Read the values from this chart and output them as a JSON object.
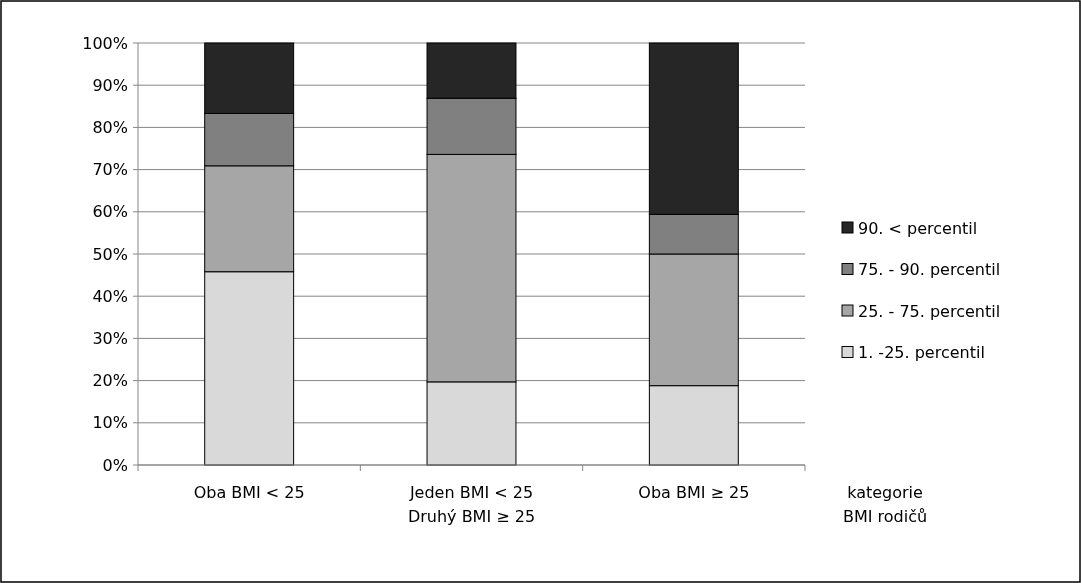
{
  "chart_data": {
    "type": "bar",
    "stacked": true,
    "xlabel": "kategorie\nBMI rodičů",
    "categories": [
      "Oba BMI < 25",
      "Jeden BMI < 25\nDruhý BMI ≥ 25",
      "Oba BMI ≥ 25"
    ],
    "series": [
      {
        "name": "1. -25. percentil",
        "color": "#d9d9d9",
        "values": [
          45.8,
          19.7,
          18.8
        ]
      },
      {
        "name": "25. - 75. percentil",
        "color": "#a6a6a6",
        "values": [
          25.1,
          53.9,
          31.2
        ]
      },
      {
        "name": "75. - 90. percentil",
        "color": "#808080",
        "values": [
          12.4,
          13.3,
          9.4
        ]
      },
      {
        "name": "90. < percentil",
        "color": "#262626",
        "values": [
          16.7,
          13.1,
          40.6
        ]
      }
    ],
    "ylim": [
      0,
      100
    ],
    "yticks": [
      {
        "value": 0,
        "label": "0%"
      },
      {
        "value": 10,
        "label": "10%"
      },
      {
        "value": 20,
        "label": "20%"
      },
      {
        "value": 30,
        "label": "30%"
      },
      {
        "value": 40,
        "label": "40%"
      },
      {
        "value": 50,
        "label": "50%"
      },
      {
        "value": 60,
        "label": "60%"
      },
      {
        "value": 70,
        "label": "70%"
      },
      {
        "value": 80,
        "label": "80%"
      },
      {
        "value": 90,
        "label": "90%"
      },
      {
        "value": 100,
        "label": "100%"
      }
    ],
    "grid": "y",
    "legend": "right"
  }
}
